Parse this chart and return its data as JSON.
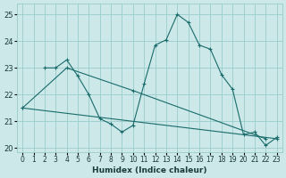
{
  "xlabel": "Humidex (Indice chaleur)",
  "bg_color": "#cce8e8",
  "grid_color": "#99cccc",
  "line_color": "#1a6b6b",
  "xlim": [
    -0.5,
    23.5
  ],
  "ylim": [
    19.85,
    25.4
  ],
  "yticks": [
    20,
    21,
    22,
    23,
    24,
    25
  ],
  "xticks": [
    0,
    1,
    2,
    3,
    4,
    5,
    6,
    7,
    8,
    9,
    10,
    11,
    12,
    13,
    14,
    15,
    16,
    17,
    18,
    19,
    20,
    21,
    22,
    23
  ],
  "series": [
    {
      "x": [
        2,
        3,
        4,
        5,
        6,
        7,
        8,
        9,
        10,
        11,
        12,
        13,
        14,
        15,
        16,
        17,
        18,
        19,
        20,
        21,
        22,
        23
      ],
      "y": [
        23.0,
        23.0,
        23.3,
        22.7,
        22.0,
        21.1,
        20.9,
        20.6,
        20.85,
        22.4,
        23.85,
        24.05,
        25.0,
        24.7,
        23.85,
        23.7,
        22.75,
        22.2,
        20.5,
        20.6,
        20.1,
        20.4
      ]
    },
    {
      "x": [
        0,
        4,
        10,
        22
      ],
      "y": [
        21.5,
        23.0,
        22.15,
        20.35
      ]
    },
    {
      "x": [
        0,
        23
      ],
      "y": [
        21.5,
        20.35
      ]
    }
  ]
}
